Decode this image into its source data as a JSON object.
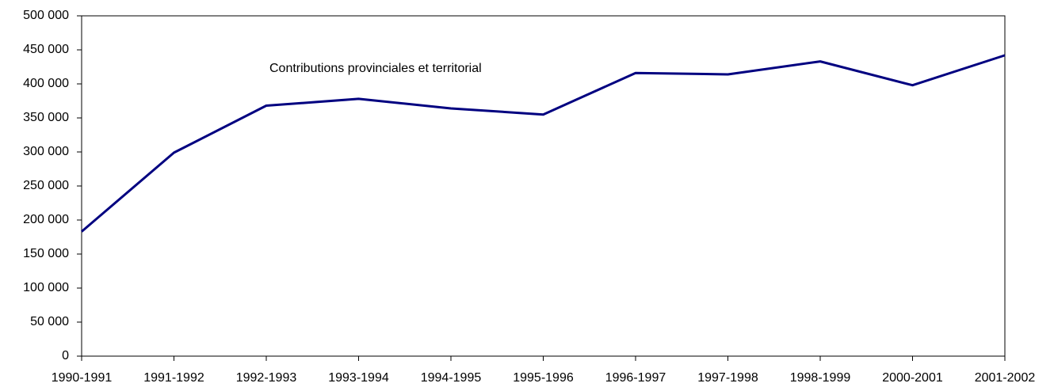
{
  "chart_data": {
    "type": "line",
    "categories": [
      "1990-1991",
      "1991-1992",
      "1992-1993",
      "1993-1994",
      "1994-1995",
      "1995-1996",
      "1996-1997",
      "1997-1998",
      "1998-1999",
      "2000-2001",
      "2001-2002"
    ],
    "series": [
      {
        "name": "Contributions provinciales et territorial",
        "color": "#000080",
        "values": [
          183000,
          299000,
          368000,
          378000,
          364000,
          355000,
          416000,
          414000,
          433000,
          398000,
          442000
        ]
      }
    ],
    "ylim": [
      0,
      500000
    ],
    "yticks": [
      0,
      {
        "value": 50000,
        "label": "50 000"
      },
      {
        "value": 100000,
        "label": "100 000"
      },
      {
        "value": 150000,
        "label": "150 000"
      },
      {
        "value": 200000,
        "label": "200 000"
      },
      {
        "value": 250000,
        "label": "250 000"
      },
      {
        "value": 300000,
        "label": "300 000"
      },
      {
        "value": 350000,
        "label": "350 000"
      },
      {
        "value": 400000,
        "label": "400 000"
      },
      {
        "value": 450000,
        "label": "450 000"
      },
      {
        "value": 500000,
        "label": "500 000"
      }
    ],
    "grid": false
  }
}
